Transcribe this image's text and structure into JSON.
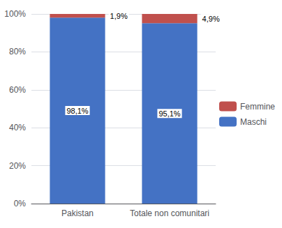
{
  "chart_data": {
    "type": "bar",
    "stacked": true,
    "categories": [
      "Pakistan",
      "Totale non comunitari"
    ],
    "series": [
      {
        "name": "Maschi",
        "color": "#4472C4",
        "values": [
          98.1,
          95.1
        ],
        "value_labels": [
          "98,1%",
          "95,1%"
        ]
      },
      {
        "name": "Femmine",
        "color": "#C0504D",
        "values": [
          1.9,
          4.9
        ],
        "value_labels": [
          "1,9%",
          "4,9%"
        ]
      }
    ],
    "ylim": [
      0,
      100
    ],
    "yticks": [
      {
        "value": 0,
        "label": "0%"
      },
      {
        "value": 20,
        "label": "20%"
      },
      {
        "value": 40,
        "label": "40%"
      },
      {
        "value": 60,
        "label": "60%"
      },
      {
        "value": 80,
        "label": "80%"
      },
      {
        "value": 100,
        "label": "100%"
      }
    ],
    "grid": true,
    "legend": "right",
    "data_labels": true
  }
}
